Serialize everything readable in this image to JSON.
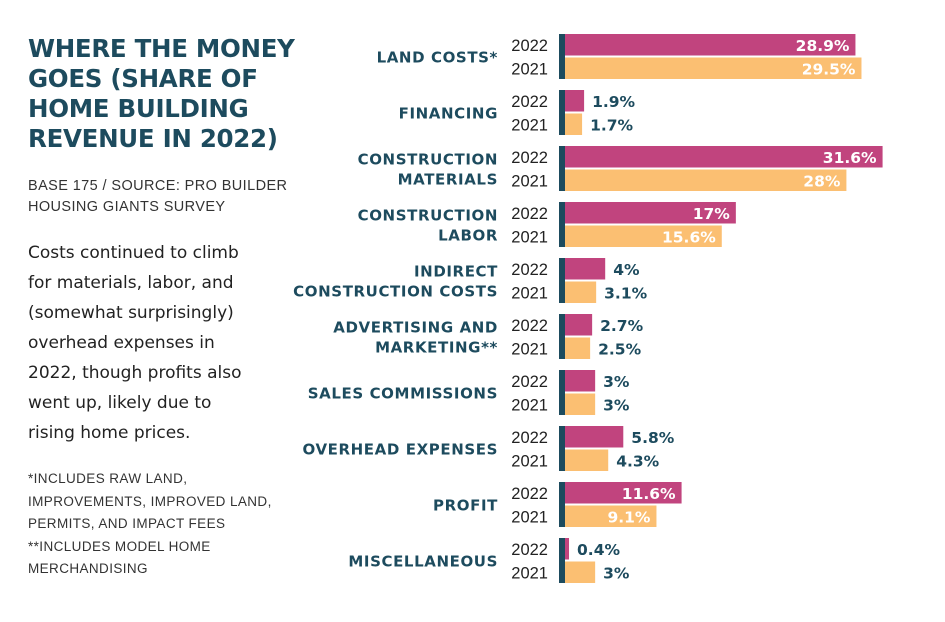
{
  "sidebar": {
    "title_lines": [
      "WHERE THE MONEY",
      "GOES (SHARE OF",
      "HOME BUILDING",
      "REVENUE IN 2022)"
    ],
    "base_lines": [
      "BASE 175 / SOURCE: PRO BUILDER",
      "HOUSING GIANTS SURVEY"
    ],
    "body_lines": [
      "Costs continued to climb",
      "for materials, labor, and",
      "(somewhat surprisingly)",
      "overhead expenses in",
      "2022, though profits also",
      "went up, likely due to",
      "rising home prices."
    ],
    "note_lines": [
      "*INCLUDES RAW LAND,",
      "IMPROVEMENTS, IMPROVED LAND,",
      "PERMITS, AND IMPACT FEES",
      "**INCLUDES MODEL HOME",
      "MERCHANDISING"
    ]
  },
  "colors": {
    "series_2022": "#c1447e",
    "series_2021": "#fbbf72",
    "axis": "#1d4b5e",
    "label_inside": "#ffffff",
    "label_outside": "#1d4b5e"
  },
  "chart_data": {
    "type": "bar",
    "orientation": "horizontal",
    "title": "WHERE THE MONEY GOES (SHARE OF HOME BUILDING REVENUE IN 2022)",
    "unit": "%",
    "categories": [
      {
        "lines": [
          "LAND COSTS*"
        ]
      },
      {
        "lines": [
          "FINANCING"
        ]
      },
      {
        "lines": [
          "CONSTRUCTION",
          "MATERIALS"
        ]
      },
      {
        "lines": [
          "CONSTRUCTION",
          "LABOR"
        ]
      },
      {
        "lines": [
          "INDIRECT",
          "CONSTRUCTION COSTS"
        ]
      },
      {
        "lines": [
          "ADVERTISING AND",
          "MARKETING**"
        ]
      },
      {
        "lines": [
          "SALES COMMISSIONS"
        ]
      },
      {
        "lines": [
          "OVERHEAD EXPENSES"
        ]
      },
      {
        "lines": [
          "PROFIT"
        ]
      },
      {
        "lines": [
          "MISCELLANEOUS"
        ]
      }
    ],
    "series": [
      {
        "name": "2022",
        "values": [
          28.9,
          1.9,
          31.6,
          17,
          4,
          2.7,
          3,
          5.8,
          11.6,
          0.4
        ],
        "labels": [
          "28.9%",
          "1.9%",
          "31.6%",
          "17%",
          "4%",
          "2.7%",
          "3%",
          "5.8%",
          "11.6%",
          "0.4%"
        ]
      },
      {
        "name": "2021",
        "values": [
          29.5,
          1.7,
          28,
          15.6,
          3.1,
          2.5,
          3,
          4.3,
          9.1,
          3
        ],
        "labels": [
          "29.5%",
          "1.7%",
          "28%",
          "15.6%",
          "3.1%",
          "2.5%",
          "3%",
          "4.3%",
          "9.1%",
          "3%"
        ]
      }
    ],
    "xlim": [
      0,
      31.6
    ],
    "legend": "none",
    "grid": false
  }
}
